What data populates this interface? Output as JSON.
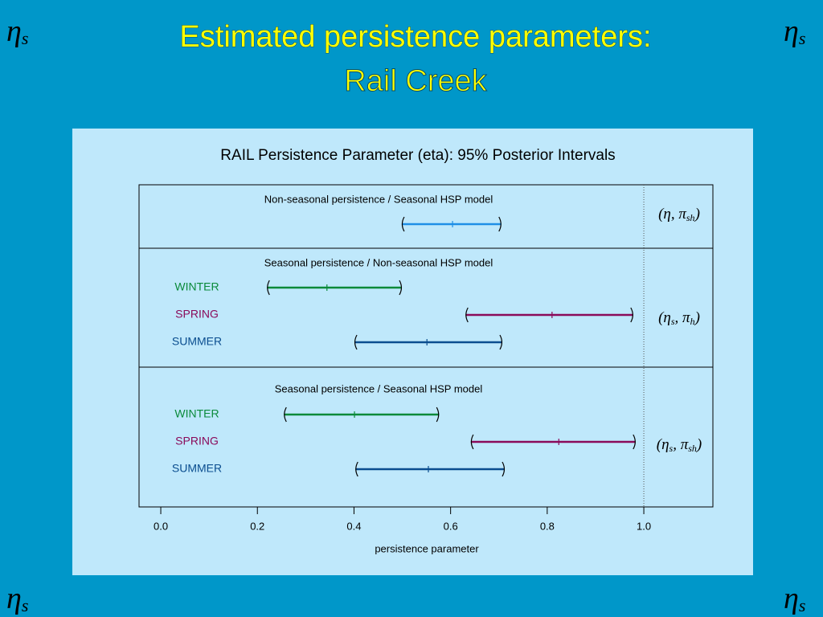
{
  "title_lines": [
    "Estimated persistence parameters:",
    "Rail Creek"
  ],
  "corner_symbol": {
    "base": "η",
    "sub": "s"
  },
  "chart_data": {
    "type": "interval",
    "title": "RAIL Persistence Parameter (eta): 95% Posterior Intervals",
    "xlabel": "persistence parameter",
    "xlim": [
      -0.045,
      1.143
    ],
    "xticks": [
      {
        "value": 0,
        "label": "0.0"
      },
      0.2,
      0.4,
      0.6,
      0.8,
      {
        "value": 1,
        "label": "1.0"
      }
    ],
    "reference_line": 1,
    "panels": [
      {
        "title": "Non-seasonal persistence / Seasonal HSP model",
        "annotation": [
          {
            "text": "(η, π"
          },
          {
            "sub": "sh"
          },
          {
            "text": ")"
          }
        ],
        "series": [
          {
            "color": "#1f8fe6",
            "values": [
              0.499,
              0.604,
              0.705
            ]
          }
        ]
      },
      {
        "title": "Seasonal persistence / Non-seasonal HSP model",
        "annotation": [
          {
            "text": "(η"
          },
          {
            "sub": "s"
          },
          {
            "text": ", π"
          },
          {
            "sub": "h"
          },
          {
            "text": ")"
          }
        ],
        "series": [
          {
            "name": "WINTER",
            "color": "#0a8a3a",
            "values": [
              0.22,
              0.344,
              0.499
            ]
          },
          {
            "name": "SPRING",
            "color": "#8a0a5a",
            "values": [
              0.631,
              0.81,
              0.978
            ]
          },
          {
            "name": "SUMMER",
            "color": "#0a4d8f",
            "values": [
              0.401,
              0.551,
              0.707
            ]
          }
        ]
      },
      {
        "title": "Seasonal persistence / Seasonal HSP model",
        "annotation": [
          {
            "text": "(η"
          },
          {
            "sub": "s"
          },
          {
            "text": ", π"
          },
          {
            "sub": "sh"
          },
          {
            "text": ")"
          }
        ],
        "series": [
          {
            "name": "WINTER",
            "color": "#0a8a3a",
            "values": [
              0.255,
              0.401,
              0.576
            ]
          },
          {
            "name": "SPRING",
            "color": "#8a0a5a",
            "values": [
              0.642,
              0.824,
              0.983
            ]
          },
          {
            "name": "SUMMER",
            "color": "#0a4d8f",
            "values": [
              0.403,
              0.554,
              0.712
            ]
          }
        ]
      }
    ]
  }
}
